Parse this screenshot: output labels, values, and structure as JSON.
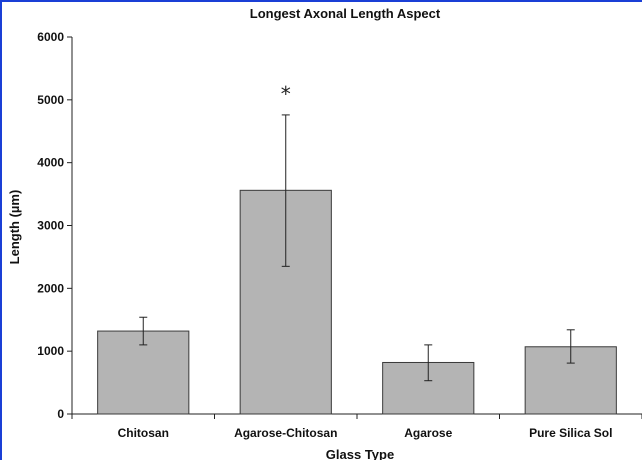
{
  "chart_data": {
    "type": "bar",
    "title": "Longest Axonal Length Aspect",
    "xlabel": "Glass Type",
    "ylabel": "Length (µm)",
    "ylim": [
      0,
      6000
    ],
    "yticks": [
      0,
      1000,
      2000,
      3000,
      4000,
      5000,
      6000
    ],
    "categories": [
      "Chitosan",
      "Agarose-Chitosan",
      "Agarose",
      "Pure Silica Sol"
    ],
    "values": [
      1320,
      3560,
      820,
      1070
    ],
    "error_low": [
      1100,
      2350,
      530,
      810
    ],
    "error_high": [
      1540,
      4760,
      1100,
      1340
    ],
    "annotations": [
      {
        "category": "Agarose-Chitosan",
        "text": "*"
      }
    ],
    "bar_color": "#b4b4b4",
    "bar_edge_color": "#3a3a3a",
    "grid": false
  },
  "frame_color": "#1a3fd6"
}
